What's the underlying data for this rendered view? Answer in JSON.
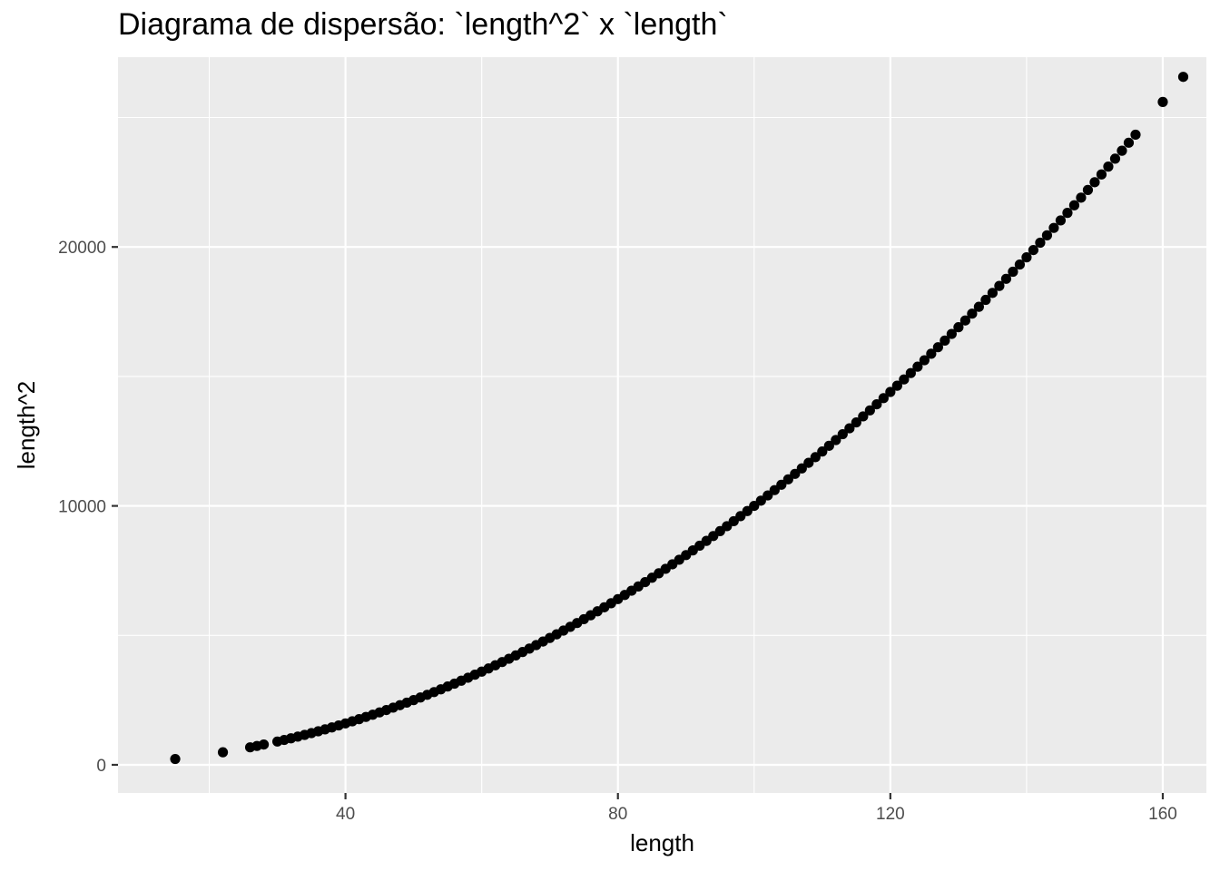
{
  "chart_data": {
    "type": "scatter",
    "title": "Diagrama de dispersão: `length^2` x `length`",
    "xlabel": "length",
    "ylabel": "length^2",
    "xlim": [
      6.6,
      166.4
    ],
    "ylim": [
      -1087,
      27330
    ],
    "x_ticks": [
      40,
      80,
      120,
      160
    ],
    "x_tick_labels": [
      "40",
      "80",
      "120",
      "160"
    ],
    "y_ticks": [
      0,
      10000,
      20000
    ],
    "y_tick_labels": [
      "0",
      "10000",
      "20000"
    ],
    "grid": true,
    "legend": "none",
    "point_color": "#000000",
    "panel_background": "#ebebeb",
    "grid_color": "#ffffff",
    "x": [
      15,
      22,
      26,
      27,
      28,
      30,
      31,
      32,
      33,
      34,
      35,
      36,
      37,
      38,
      39,
      40,
      41,
      42,
      43,
      44,
      45,
      46,
      47,
      48,
      49,
      50,
      51,
      52,
      53,
      54,
      55,
      56,
      57,
      58,
      59,
      60,
      61,
      62,
      63,
      64,
      65,
      66,
      67,
      68,
      69,
      70,
      71,
      72,
      73,
      74,
      75,
      76,
      77,
      78,
      79,
      80,
      81,
      82,
      83,
      84,
      85,
      86,
      87,
      88,
      89,
      90,
      91,
      92,
      93,
      94,
      95,
      96,
      97,
      98,
      99,
      100,
      101,
      102,
      103,
      104,
      105,
      106,
      107,
      108,
      109,
      110,
      111,
      112,
      113,
      114,
      115,
      116,
      117,
      118,
      119,
      120,
      121,
      122,
      123,
      124,
      125,
      126,
      127,
      128,
      129,
      130,
      131,
      132,
      133,
      134,
      135,
      136,
      137,
      138,
      139,
      140,
      141,
      142,
      143,
      144,
      145,
      146,
      147,
      148,
      149,
      150,
      151,
      152,
      153,
      154,
      155,
      156,
      160,
      163
    ],
    "y": [
      225,
      484,
      676,
      729,
      784,
      900,
      961,
      1024,
      1089,
      1156,
      1225,
      1296,
      1369,
      1444,
      1521,
      1600,
      1681,
      1764,
      1849,
      1936,
      2025,
      2116,
      2209,
      2304,
      2401,
      2500,
      2601,
      2704,
      2809,
      2916,
      3025,
      3136,
      3249,
      3364,
      3481,
      3600,
      3721,
      3844,
      3969,
      4096,
      4225,
      4356,
      4489,
      4624,
      4761,
      4900,
      5041,
      5184,
      5329,
      5476,
      5625,
      5776,
      5929,
      6084,
      6241,
      6400,
      6561,
      6724,
      6889,
      7056,
      7225,
      7396,
      7569,
      7744,
      7921,
      8100,
      8281,
      8464,
      8649,
      8836,
      9025,
      9216,
      9409,
      9604,
      9801,
      10000,
      10201,
      10404,
      10609,
      10816,
      11025,
      11236,
      11449,
      11664,
      11881,
      12100,
      12321,
      12544,
      12769,
      12996,
      13225,
      13456,
      13689,
      13924,
      14161,
      14400,
      14641,
      14884,
      15129,
      15376,
      15625,
      15876,
      16129,
      16384,
      16641,
      16900,
      17161,
      17424,
      17689,
      17956,
      18225,
      18496,
      18769,
      19044,
      19321,
      19600,
      19881,
      20164,
      20449,
      20736,
      21025,
      21316,
      21609,
      21904,
      22201,
      22500,
      22801,
      23104,
      23409,
      23716,
      24025,
      24336,
      25600,
      26569
    ]
  }
}
